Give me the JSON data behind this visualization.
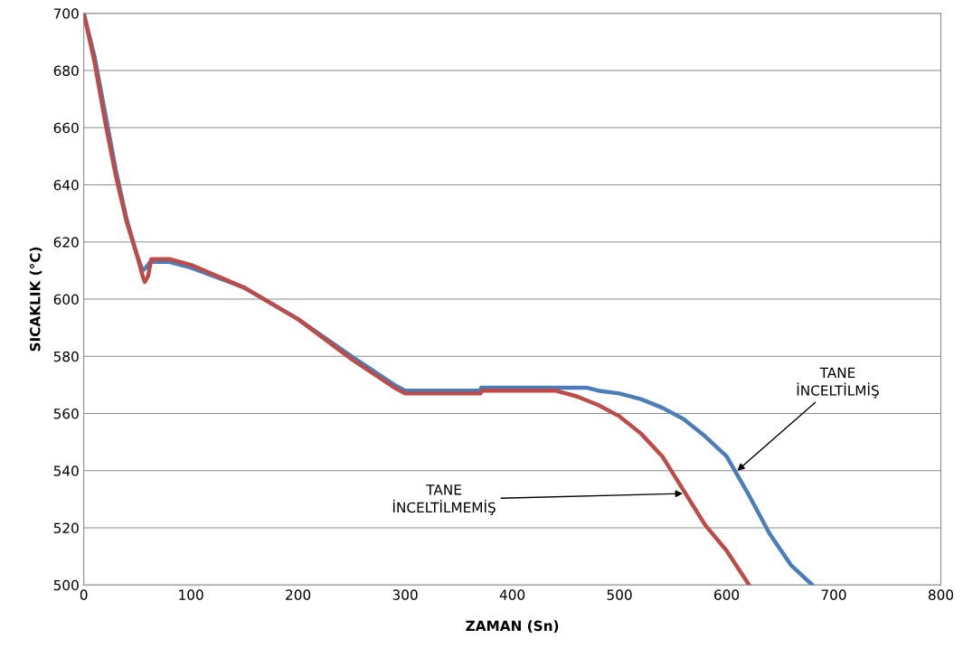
{
  "chart_data": {
    "type": "line",
    "xlabel": "ZAMAN (Sn)",
    "ylabel": "SICAKLIK (°C)",
    "xlim": [
      0,
      800
    ],
    "xticks": [
      0,
      100,
      200,
      300,
      400,
      500,
      600,
      700,
      800
    ],
    "ylim": [
      500,
      700
    ],
    "yticks": [
      500,
      520,
      540,
      560,
      580,
      600,
      620,
      640,
      660,
      680,
      700
    ],
    "grid": "y",
    "legend": false,
    "marker": "none",
    "line_style": "solid",
    "series": [
      {
        "color": "#4a7ebb",
        "x": [
          0,
          10,
          20,
          30,
          40,
          50,
          55,
          58,
          62,
          80,
          100,
          150,
          200,
          250,
          290,
          300,
          370,
          371,
          470,
          480,
          500,
          520,
          540,
          560,
          580,
          600,
          620,
          640,
          660,
          680
        ],
        "values": [
          700,
          685,
          665,
          645,
          628,
          615,
          610,
          611,
          613,
          613,
          611,
          604,
          593,
          580,
          570,
          568,
          568,
          569,
          569,
          568,
          567,
          565,
          562,
          558,
          552,
          545,
          532,
          518,
          507,
          500
        ]
      },
      {
        "color": "#be4b48",
        "x": [
          0,
          10,
          20,
          30,
          40,
          50,
          55,
          57,
          60,
          63,
          80,
          100,
          150,
          200,
          250,
          290,
          300,
          370,
          372,
          440,
          460,
          480,
          500,
          520,
          540,
          560,
          580,
          600,
          621
        ],
        "values": [
          700,
          683,
          662,
          643,
          627,
          615,
          608,
          606,
          608,
          614,
          614,
          612,
          604,
          593,
          579,
          569,
          567,
          567,
          568,
          568,
          566,
          563,
          559,
          553,
          545,
          533,
          521,
          512,
          500
        ]
      }
    ],
    "annotations": [
      {
        "text": "TANE\nİNCELTİLMİŞ",
        "x": 610,
        "y": 540
      },
      {
        "text": "TANE\nİNCELTİLMEMİŞ",
        "x": 559,
        "y": 532
      }
    ]
  }
}
